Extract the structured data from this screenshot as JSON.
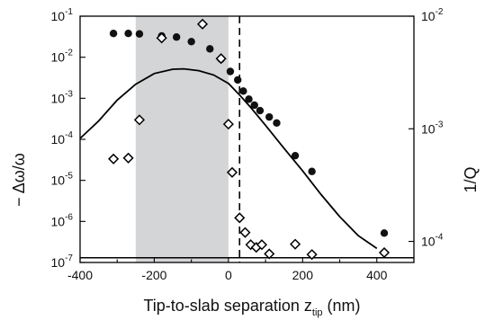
{
  "chart_data": {
    "type": "scatter",
    "xlabel": "Tip-to-slab separation z",
    "xlabel_subscript": "tip",
    "xlabel_unit": "(nm)",
    "ylabel_left": "− Δω/ω",
    "ylabel_right": "1/Q",
    "xlim": [
      -400,
      500
    ],
    "x_ticks": [
      -400,
      -200,
      0,
      200,
      400
    ],
    "x_tick_labels": [
      "-400",
      "-200",
      "0",
      "200",
      "400"
    ],
    "ylim_left": [
      1e-07,
      0.1
    ],
    "left_scale": "log",
    "left_ticks": [
      {
        "value": 1e-07,
        "base": "10",
        "exp": "-7"
      },
      {
        "value": 1e-06,
        "base": "10",
        "exp": "-6"
      },
      {
        "value": 1e-05,
        "base": "10",
        "exp": "-5"
      },
      {
        "value": 0.0001,
        "base": "10",
        "exp": "-4"
      },
      {
        "value": 0.001,
        "base": "10",
        "exp": "-3"
      },
      {
        "value": 0.01,
        "base": "10",
        "exp": "-2"
      },
      {
        "value": 0.1,
        "base": "10",
        "exp": "-1"
      }
    ],
    "ylim_right": [
      6.5e-05,
      0.01
    ],
    "right_scale": "log",
    "right_ticks": [
      {
        "value": 0.0001,
        "base": "10",
        "exp": "-4"
      },
      {
        "value": 0.001,
        "base": "10",
        "exp": "-3"
      },
      {
        "value": 0.01,
        "base": "10",
        "exp": "-2"
      }
    ],
    "shaded_region_x": [
      -250,
      0
    ],
    "dashed_vertical_x": 30,
    "horizontal_line_y_left": 1.3e-07,
    "colors": {
      "shade": "#d4d5d7",
      "ink": "#000000",
      "filled_marker": "#111111",
      "open_marker_fill": "#ffffff"
    },
    "series": [
      {
        "marker": "filled-circle",
        "axis": "left",
        "points": [
          [
            -310,
            0.038
          ],
          [
            -270,
            0.038
          ],
          [
            -240,
            0.037
          ],
          [
            -180,
            0.033
          ],
          [
            -140,
            0.031
          ],
          [
            -100,
            0.024
          ],
          [
            -50,
            0.016
          ],
          [
            -20,
            0.009
          ],
          [
            5,
            0.0045
          ],
          [
            25,
            0.0028
          ],
          [
            40,
            0.0015
          ],
          [
            55,
            0.00095
          ],
          [
            70,
            0.00068
          ],
          [
            85,
            0.0005
          ],
          [
            110,
            0.00035
          ],
          [
            130,
            0.00025
          ],
          [
            180,
            4e-05
          ],
          [
            225,
            1.65e-05
          ],
          [
            420,
            5.2e-07
          ]
        ]
      },
      {
        "marker": "open-diamond",
        "axis": "right",
        "points": [
          [
            -310,
            0.00054
          ],
          [
            -270,
            0.00055
          ],
          [
            -240,
            0.0012
          ],
          [
            -180,
            0.0064
          ],
          [
            -70,
            0.0085
          ],
          [
            -20,
            0.0042
          ],
          [
            0,
            0.0011
          ],
          [
            10,
            0.00041
          ],
          [
            30,
            0.000162
          ],
          [
            45,
            0.00012
          ],
          [
            60,
            9.35e-05
          ],
          [
            75,
            8.85e-05
          ],
          [
            90,
            9.35e-05
          ],
          [
            110,
            7.75e-05
          ],
          [
            180,
            9.45e-05
          ],
          [
            225,
            7.65e-05
          ],
          [
            420,
            7.95e-05
          ]
        ]
      },
      {
        "marker": "solid-line",
        "axis": "left",
        "points": [
          [
            -400,
            0.000105
          ],
          [
            -350,
            0.00028
          ],
          [
            -300,
            0.0009
          ],
          [
            -250,
            0.0022
          ],
          [
            -200,
            0.004
          ],
          [
            -150,
            0.0051
          ],
          [
            -120,
            0.0052
          ],
          [
            -80,
            0.0047
          ],
          [
            -40,
            0.0037
          ],
          [
            0,
            0.0023
          ],
          [
            30,
            0.0012
          ],
          [
            60,
            0.0006
          ],
          [
            100,
            0.00022
          ],
          [
            150,
            6e-05
          ],
          [
            200,
            1.7e-05
          ],
          [
            250,
            4.5e-06
          ],
          [
            300,
            1.3e-06
          ],
          [
            350,
            4.5e-07
          ],
          [
            400,
            2.2e-07
          ]
        ]
      }
    ]
  }
}
